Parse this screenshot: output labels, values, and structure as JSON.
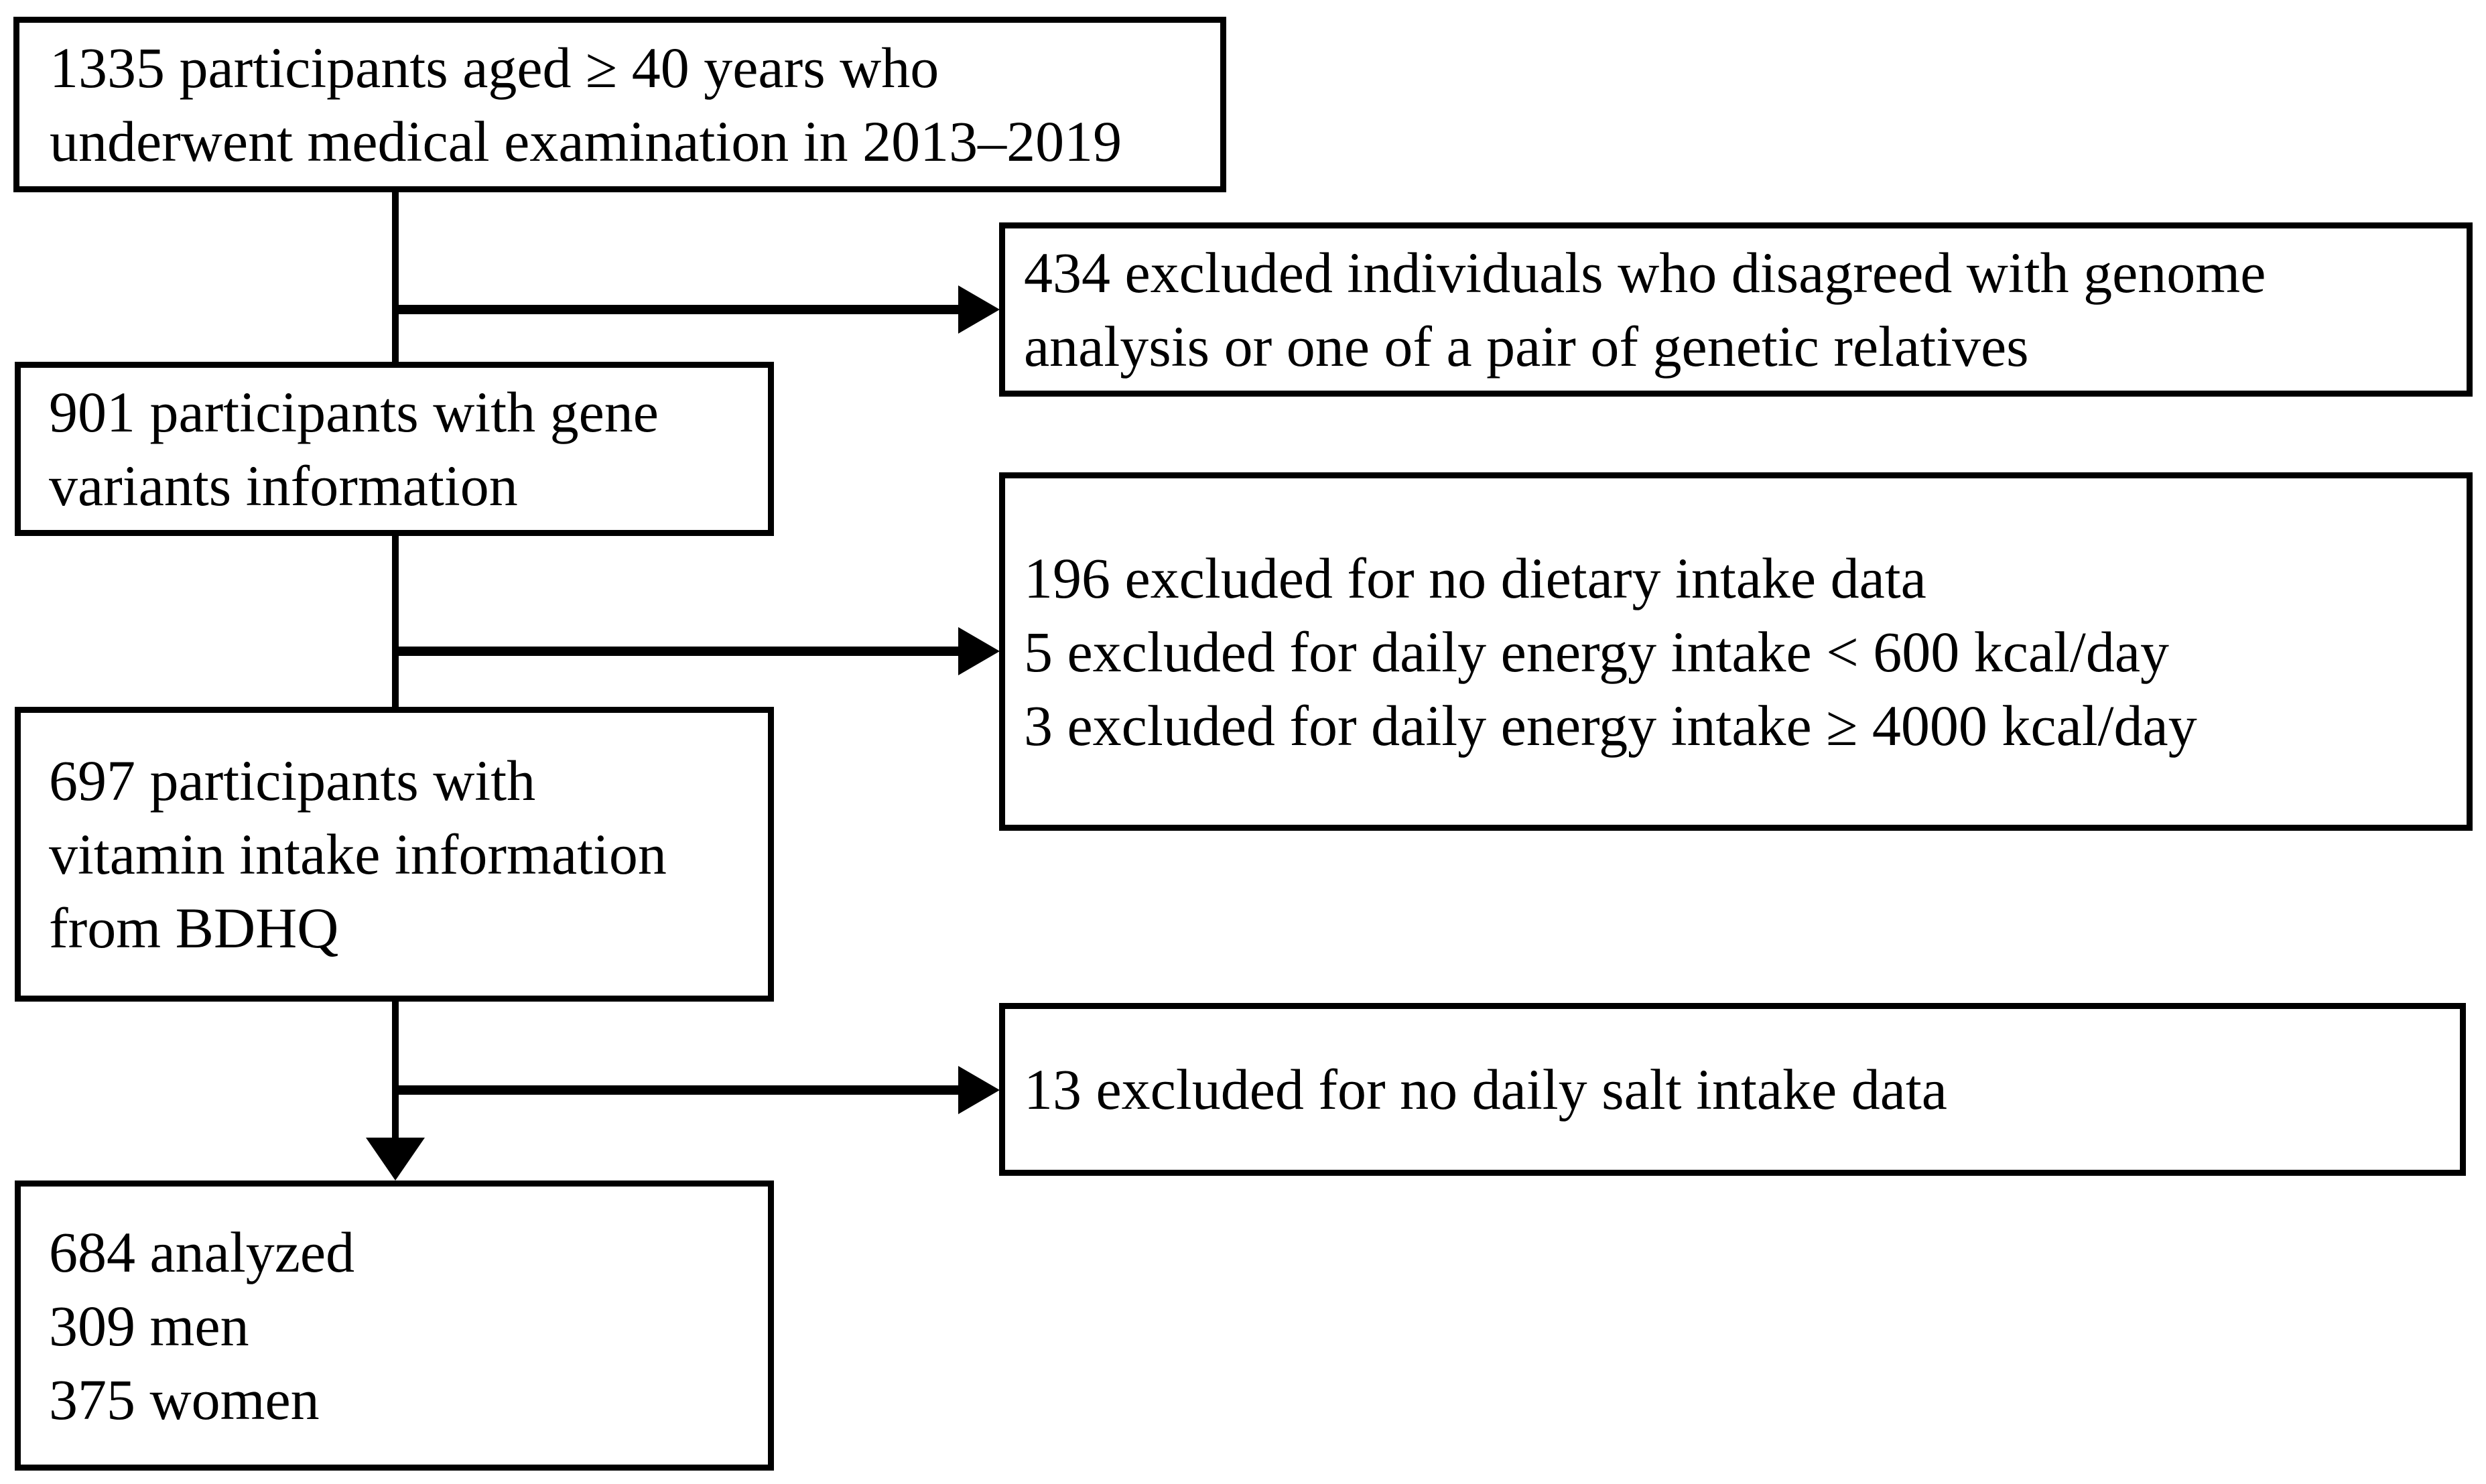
{
  "diagram": {
    "type": "participant-flowchart",
    "background_color": "#ffffff",
    "line_color": "#000000",
    "boxes": {
      "enrolled": {
        "lines": [
          "1335 participants aged ≥ 40 years who",
          "underwent medical examination in 2013–2019"
        ]
      },
      "excluded_genome": {
        "lines": [
          "434 excluded individuals who disagreed with genome",
          "analysis or one of a pair of genetic relatives"
        ]
      },
      "gene_variants": {
        "lines": [
          "901 participants with gene",
          "variants information"
        ]
      },
      "excluded_dietary": {
        "lines": [
          "196 excluded for no dietary intake data",
          "5 excluded for daily energy intake < 600 kcal/day",
          "3 excluded for daily energy intake ≥ 4000 kcal/day"
        ]
      },
      "vitamin_intake": {
        "lines": [
          "697 participants with",
          "vitamin intake information",
          "from BDHQ"
        ]
      },
      "excluded_salt": {
        "lines": [
          "13 excluded for no daily salt intake data"
        ]
      },
      "analyzed": {
        "lines": [
          "684 analyzed",
          "309 men",
          "375 women"
        ]
      }
    }
  }
}
